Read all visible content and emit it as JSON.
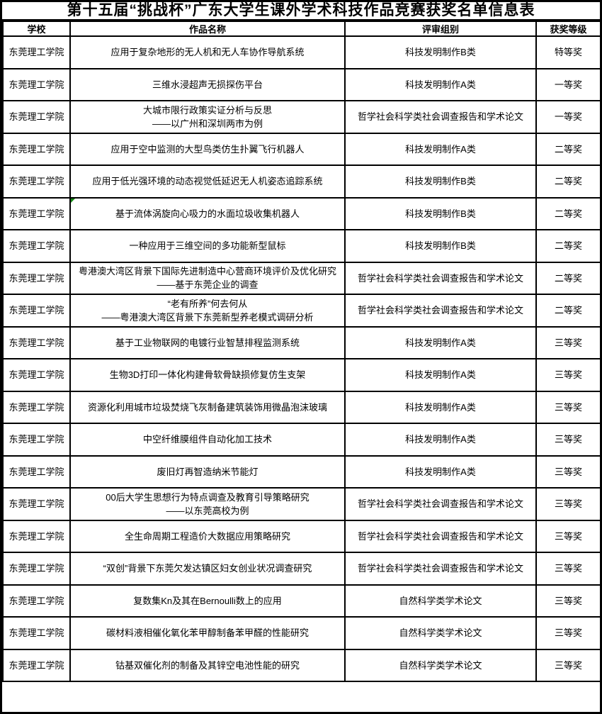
{
  "page": {
    "title": "第十五届“挑战杯”广东大学生课外学术科技作品竞赛获奖名单信息表"
  },
  "table": {
    "columns": [
      {
        "key": "school",
        "label": "学校"
      },
      {
        "key": "work",
        "label": "作品名称"
      },
      {
        "key": "group",
        "label": "评审组别"
      },
      {
        "key": "award",
        "label": "获奖等级"
      }
    ],
    "rows": [
      {
        "school": "东莞理工学院",
        "work": "应用于复杂地形的无人机和无人车协作导航系统",
        "group": "科技发明制作B类",
        "award": "特等奖",
        "flag": false
      },
      {
        "school": "东莞理工学院",
        "work": "三维水浸超声无损探伤平台",
        "group": "科技发明制作A类",
        "award": "一等奖",
        "flag": false
      },
      {
        "school": "东莞理工学院",
        "work": "大城市限行政策实证分析与反思\n——以广州和深圳两市为例",
        "group": "哲学社会科学类社会调查报告和学术论文",
        "award": "一等奖",
        "flag": false
      },
      {
        "school": "东莞理工学院",
        "work": "应用于空中监测的大型鸟类仿生扑翼飞行机器人",
        "group": "科技发明制作A类",
        "award": "二等奖",
        "flag": false
      },
      {
        "school": "东莞理工学院",
        "work": "应用于低光强环境的动态视觉低延迟无人机姿态追踪系统",
        "group": "科技发明制作B类",
        "award": "二等奖",
        "flag": false
      },
      {
        "school": "东莞理工学院",
        "work": "基于流体涡旋向心吸力的水面垃圾收集机器人",
        "group": "科技发明制作B类",
        "award": "二等奖",
        "flag": true
      },
      {
        "school": "东莞理工学院",
        "work": "一种应用于三维空间的多功能新型鼠标",
        "group": "科技发明制作B类",
        "award": "二等奖",
        "flag": false
      },
      {
        "school": "东莞理工学院",
        "work": "粤港澳大湾区背景下国际先进制造中心营商环境评价及优化研究\n——基于东莞企业的调查",
        "group": "哲学社会科学类社会调查报告和学术论文",
        "award": "二等奖",
        "flag": false
      },
      {
        "school": "东莞理工学院",
        "work": "“老有所养”何去何从\n——粤港澳大湾区背景下东莞新型养老模式调研分析",
        "group": "哲学社会科学类社会调查报告和学术论文",
        "award": "二等奖",
        "flag": false
      },
      {
        "school": "东莞理工学院",
        "work": "基于工业物联网的电镀行业智慧排程监测系统",
        "group": "科技发明制作A类",
        "award": "三等奖",
        "flag": false
      },
      {
        "school": "东莞理工学院",
        "work": "生物3D打印一体化构建骨软骨缺损修复仿生支架",
        "group": "科技发明制作A类",
        "award": "三等奖",
        "flag": false
      },
      {
        "school": "东莞理工学院",
        "work": "资源化利用城市垃圾焚烧飞灰制备建筑装饰用微晶泡沫玻璃",
        "group": "科技发明制作A类",
        "award": "三等奖",
        "flag": false
      },
      {
        "school": "东莞理工学院",
        "work": "中空纤维膜组件自动化加工技术",
        "group": "科技发明制作A类",
        "award": "三等奖",
        "flag": false
      },
      {
        "school": "东莞理工学院",
        "work": "废旧灯再智造纳米节能灯",
        "group": "科技发明制作A类",
        "award": "三等奖",
        "flag": false
      },
      {
        "school": "东莞理工学院",
        "work": "00后大学生思想行为特点调查及教育引导策略研究\n——以东莞高校为例",
        "group": "哲学社会科学类社会调查报告和学术论文",
        "award": "三等奖",
        "flag": false
      },
      {
        "school": "东莞理工学院",
        "work": "全生命周期工程造价大数据应用策略研究",
        "group": "哲学社会科学类社会调查报告和学术论文",
        "award": "三等奖",
        "flag": false
      },
      {
        "school": "东莞理工学院",
        "work": "“双创”背景下东莞欠发达镇区妇女创业状况调查研究",
        "group": "哲学社会科学类社会调查报告和学术论文",
        "award": "三等奖",
        "flag": false
      },
      {
        "school": "东莞理工学院",
        "work": "复数集Kn及其在Bernoulli数上的应用",
        "group": "自然科学类学术论文",
        "award": "三等奖",
        "flag": false
      },
      {
        "school": "东莞理工学院",
        "work": "碳材料液相催化氧化苯甲醇制备苯甲醛的性能研究",
        "group": "自然科学类学术论文",
        "award": "三等奖",
        "flag": false
      },
      {
        "school": "东莞理工学院",
        "work": "钴基双催化剂的制备及其锌空电池性能的研究",
        "group": "自然科学类学术论文",
        "award": "三等奖",
        "flag": false
      }
    ]
  },
  "flag_marker": {
    "shape": "triangle-top-left",
    "color": "#128712",
    "row": 6,
    "column": "作品名称"
  }
}
